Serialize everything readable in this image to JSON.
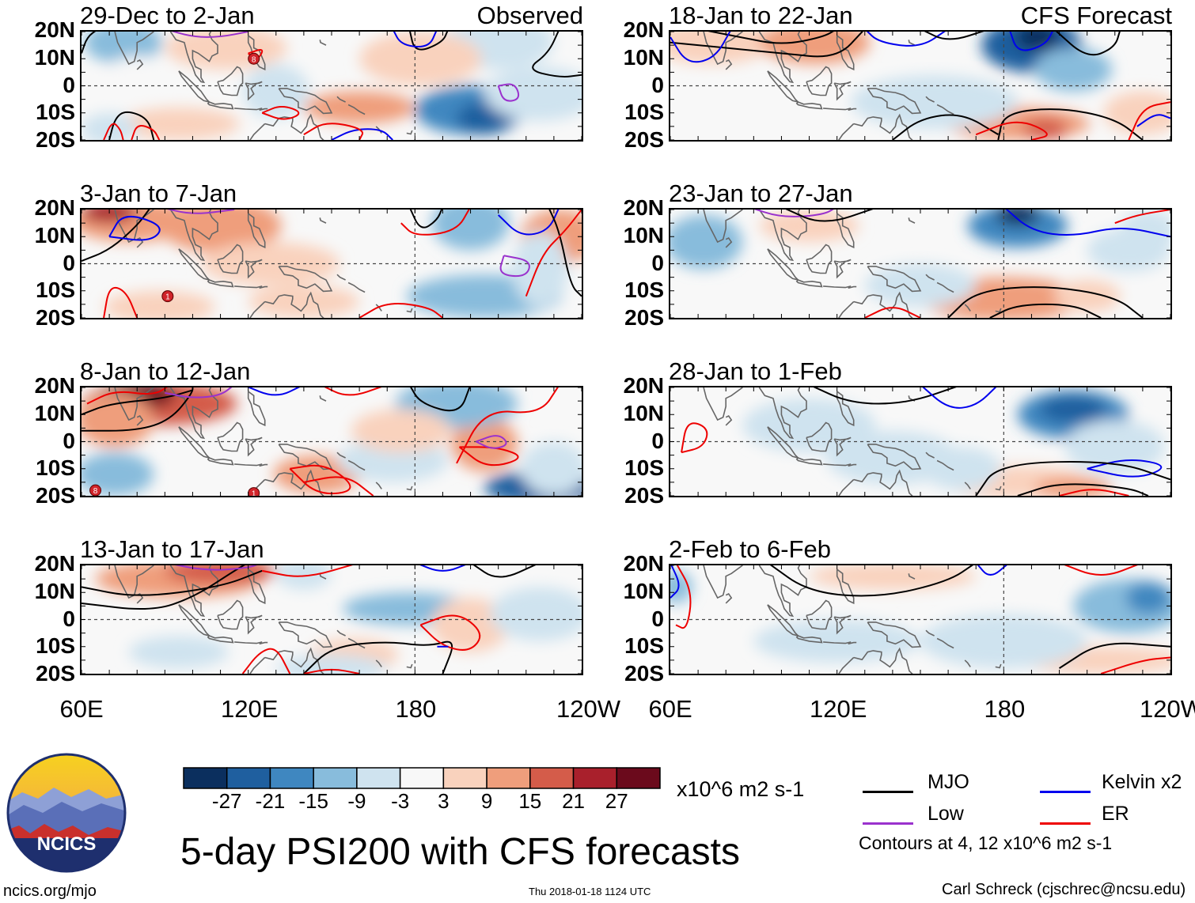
{
  "figure": {
    "title": "5-day PSI200 with CFS forecasts",
    "observed_label": "Observed",
    "forecast_label": "CFS Forecast",
    "units": "x10^6 m2 s-1",
    "site": "ncics.org/mjo",
    "timestamp": "Thu 2018-01-18 1124 UTC",
    "author": "Carl Schreck (cjschrec@ncsu.edu)",
    "logo_text": "NCICS"
  },
  "axes": {
    "lat_labels": [
      "20N",
      "10N",
      "0",
      "10S",
      "20S"
    ],
    "lon_labels": [
      "60E",
      "120E",
      "180",
      "120W"
    ],
    "lon_values_deg_east": [
      60,
      120,
      180,
      240
    ],
    "lat_values": [
      20,
      10,
      0,
      -10,
      -20
    ]
  },
  "panels_left": [
    {
      "title": "29-Dec to 2-Jan",
      "tag": "Observed"
    },
    {
      "title": "3-Jan to 7-Jan",
      "tag": ""
    },
    {
      "title": "8-Jan to 12-Jan",
      "tag": ""
    },
    {
      "title": "13-Jan to 17-Jan",
      "tag": ""
    }
  ],
  "panels_right": [
    {
      "title": "18-Jan to 22-Jan",
      "tag": "CFS Forecast"
    },
    {
      "title": "23-Jan to 27-Jan",
      "tag": ""
    },
    {
      "title": "28-Jan to 1-Feb",
      "tag": ""
    },
    {
      "title": "2-Feb to 6-Feb",
      "tag": ""
    }
  ],
  "colorbar": {
    "labels": [
      "-27",
      "-21",
      "-15",
      "-9",
      "-3",
      "3",
      "9",
      "15",
      "21",
      "27"
    ],
    "colors": [
      "#0b2f5e",
      "#1f5f9f",
      "#3f87c0",
      "#88bcdc",
      "#cfe3ef",
      "#f8f8f8",
      "#f9d2bd",
      "#ef9e7c",
      "#d45c4a",
      "#a9202c",
      "#6b0a1c"
    ]
  },
  "legend": {
    "items": [
      {
        "label": "MJO",
        "color": "#000000"
      },
      {
        "label": "Kelvin x2",
        "color": "#0000ee"
      },
      {
        "label": "Low",
        "color": "#9a32cd"
      },
      {
        "label": "ER",
        "color": "#ee0000"
      }
    ],
    "contour_note": "Contours at 4, 12 x10^6 m2 s-1"
  },
  "cyclone_markers": [
    {
      "panel": "29-Dec to 2-Jan",
      "lon": 122,
      "lat": 10,
      "label": "8"
    },
    {
      "panel": "3-Jan to 7-Jan",
      "lon": 91,
      "lat": -12,
      "label": "1"
    },
    {
      "panel": "8-Jan to 12-Jan",
      "lon": 65,
      "lat": -18,
      "label": "8"
    },
    {
      "panel": "8-Jan to 12-Jan",
      "lon": 122,
      "lat": -19,
      "label": "1"
    }
  ]
}
